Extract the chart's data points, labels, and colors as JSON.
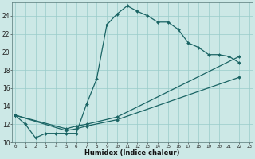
{
  "xlabel": "Humidex (Indice chaleur)",
  "bg_color": "#cce8e6",
  "grid_color": "#99ccca",
  "line_color": "#1a6464",
  "line1_x": [
    0,
    1,
    2,
    3,
    4,
    5,
    6,
    7,
    8,
    9,
    10,
    11,
    12,
    13,
    14,
    15,
    16,
    17,
    18,
    19,
    20,
    21,
    22
  ],
  "line1_y": [
    13.0,
    12.0,
    10.5,
    11.0,
    11.0,
    11.0,
    11.0,
    14.2,
    17.0,
    23.0,
    24.2,
    25.1,
    24.5,
    24.0,
    23.3,
    23.3,
    22.5,
    21.0,
    20.5,
    19.7,
    19.7,
    19.5,
    18.8
  ],
  "line2_x": [
    0,
    5,
    6,
    7,
    10,
    22
  ],
  "line2_y": [
    13.0,
    11.5,
    11.8,
    12.0,
    12.8,
    19.5
  ],
  "line3_x": [
    0,
    5,
    6,
    7,
    10,
    22
  ],
  "line3_y": [
    13.0,
    11.3,
    11.5,
    11.8,
    12.5,
    17.2
  ],
  "ylim": [
    10,
    25.5
  ],
  "xlim": [
    -0.3,
    23.3
  ],
  "yticks": [
    10,
    12,
    14,
    16,
    18,
    20,
    22,
    24
  ],
  "xticks": [
    0,
    1,
    2,
    3,
    4,
    5,
    6,
    7,
    8,
    9,
    10,
    11,
    12,
    13,
    14,
    15,
    16,
    17,
    18,
    19,
    20,
    21,
    22,
    23
  ]
}
